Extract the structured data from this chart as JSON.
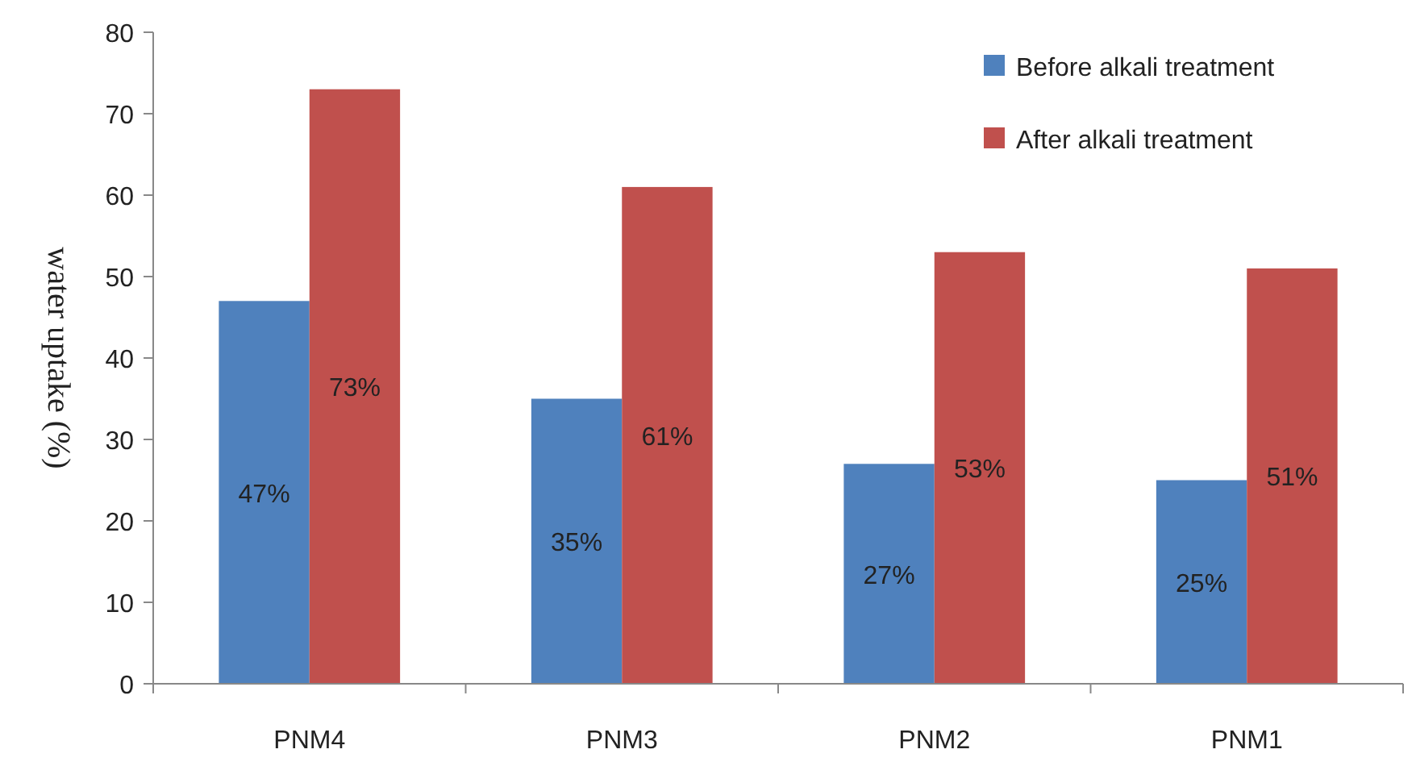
{
  "chart_data": {
    "type": "bar",
    "ylabel": "water uptake (%)",
    "categories": [
      "PNM4",
      "PNM3",
      "PNM2",
      "PNM1"
    ],
    "series": [
      {
        "name": "Before alkali treatment",
        "color": "#4f81bd",
        "values": [
          47,
          35,
          27,
          25
        ],
        "value_labels": [
          "47%",
          "35%",
          "27%",
          "25%"
        ]
      },
      {
        "name": "After alkali treatment",
        "color": "#c0504d",
        "values": [
          73,
          61,
          53,
          51
        ],
        "value_labels": [
          "73%",
          "61%",
          "53%",
          "51%"
        ]
      }
    ],
    "ylim": [
      0,
      80
    ],
    "yticks": [
      0,
      10,
      20,
      30,
      40,
      50,
      60,
      70,
      80
    ],
    "grid": false,
    "legend": "top right"
  }
}
